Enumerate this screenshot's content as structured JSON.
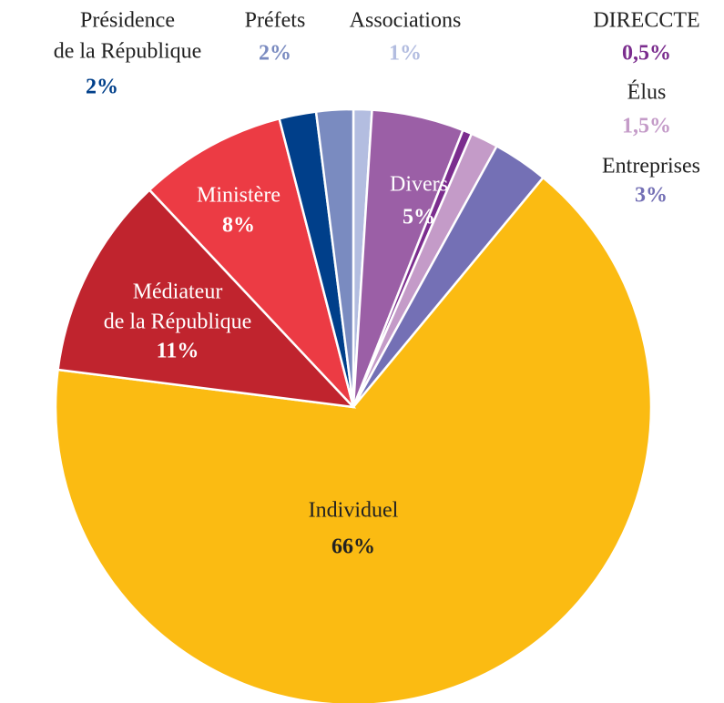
{
  "chart_data": {
    "type": "pie",
    "categories": [
      [
        "Associations"
      ],
      [
        "Divers"
      ],
      [
        "DIRECCTE"
      ],
      [
        "Élus"
      ],
      [
        "Entreprises"
      ],
      [
        "Individuel"
      ],
      [
        "Médiateur",
        "de la République"
      ],
      [
        "Ministère"
      ],
      [
        "Présidence",
        "de la République"
      ],
      [
        "Préfets"
      ]
    ],
    "values": [
      1,
      5,
      0.5,
      1.5,
      3,
      66,
      11,
      8,
      2,
      2
    ],
    "value_labels": [
      "1%",
      "5%",
      "0,5%",
      "1,5%",
      "3%",
      "66%",
      "11%",
      "8%",
      "2%",
      "2%"
    ],
    "colors": [
      "#b3bde0",
      "#9b5fa6",
      "#7b2d8e",
      "#c49bc8",
      "#7470b5",
      "#fbbb12",
      "#c0242e",
      "#ec3b44",
      "#003f8a",
      "#7a8bc0"
    ]
  }
}
